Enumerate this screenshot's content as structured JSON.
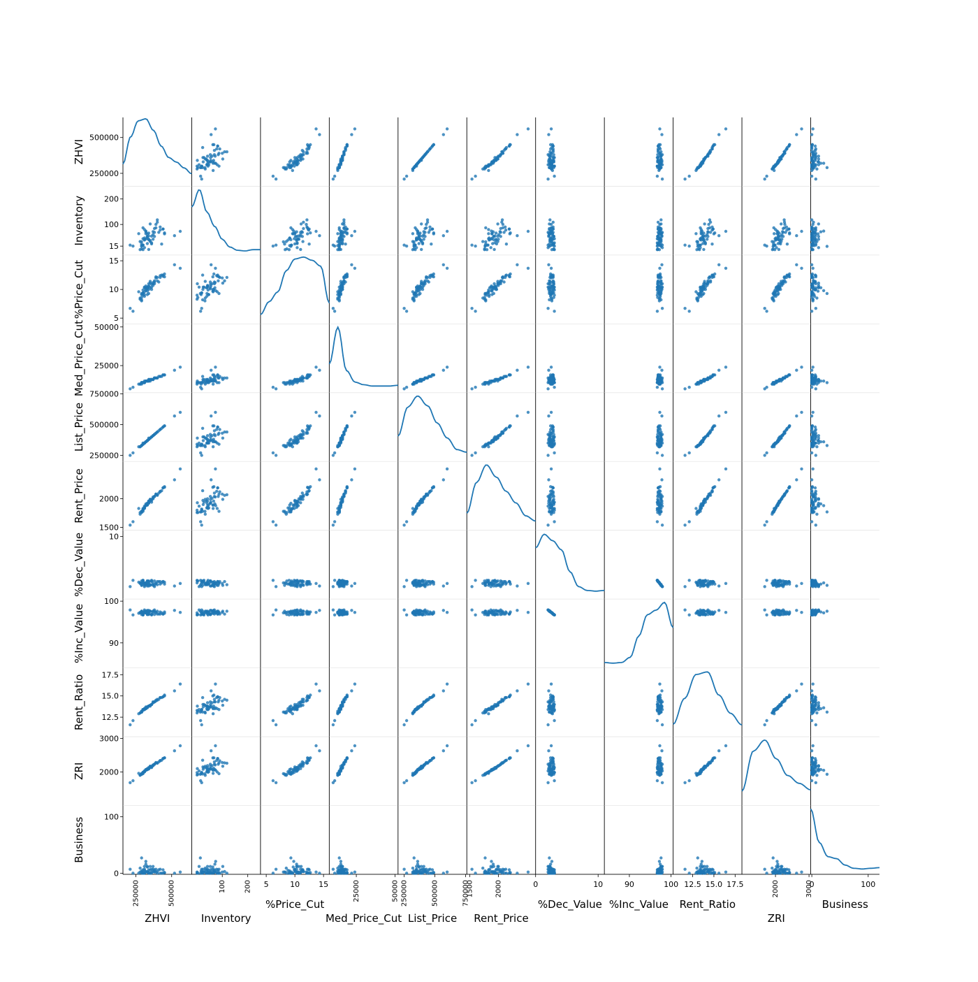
{
  "chart_data": {
    "type": "scatter",
    "subtype": "scatter_matrix",
    "title": "",
    "diagonal": "kde",
    "point_color": "#1f77b4",
    "line_color": "#1f77b4",
    "grid": false,
    "variables": [
      {
        "name": "ZHVI",
        "range": [
          160000,
          640000
        ],
        "y_ticks": [
          {
            "v": 250000,
            "label": "250000"
          },
          {
            "v": 500000,
            "label": "500000"
          }
        ],
        "x_ticks": [
          {
            "v": 250000,
            "label": "250000"
          },
          {
            "v": 500000,
            "label": "500000"
          }
        ],
        "x_tick_rotated": true
      },
      {
        "name": "Inventory",
        "range": [
          -20,
          250
        ],
        "y_ticks": [
          {
            "v": 15,
            "label": "15"
          },
          {
            "v": 100,
            "label": "100"
          },
          {
            "v": 200,
            "label": "200"
          }
        ],
        "x_ticks": [
          {
            "v": 100,
            "label": "100"
          },
          {
            "v": 200,
            "label": "200"
          }
        ],
        "x_tick_rotated": true
      },
      {
        "name": "%Price_Cut",
        "range": [
          4,
          16
        ],
        "y_ticks": [
          {
            "v": 5,
            "label": "5"
          },
          {
            "v": 10,
            "label": "10"
          },
          {
            "v": 15,
            "label": "15"
          }
        ],
        "x_ticks": [
          {
            "v": 5,
            "label": "5"
          },
          {
            "v": 10,
            "label": "10"
          },
          {
            "v": 15,
            "label": "15"
          }
        ],
        "x_tick_rotated": false
      },
      {
        "name": "Med_Price_Cut",
        "range": [
          7500,
          52000
        ],
        "y_ticks": [
          {
            "v": 25000,
            "label": "25000"
          },
          {
            "v": 50000,
            "label": "50000"
          }
        ],
        "x_ticks": [
          {
            "v": 25000,
            "label": "25000"
          },
          {
            "v": 50000,
            "label": "50000"
          }
        ],
        "x_tick_rotated": true
      },
      {
        "name": "List_Price",
        "range": [
          200000,
          760000
        ],
        "y_ticks": [
          {
            "v": 250000,
            "label": "250000"
          },
          {
            "v": 500000,
            "label": "500000"
          },
          {
            "v": 750000,
            "label": "750000"
          }
        ],
        "x_ticks": [
          {
            "v": 250000,
            "label": "250000"
          },
          {
            "v": 500000,
            "label": "500000"
          },
          {
            "v": 750000,
            "label": "750000"
          }
        ],
        "x_tick_rotated": true
      },
      {
        "name": "Rent_Price",
        "range": [
          1450,
          2650
        ],
        "y_ticks": [
          {
            "v": 1500,
            "label": "1500"
          },
          {
            "v": 2000,
            "label": "2000"
          }
        ],
        "x_ticks": [
          {
            "v": 1500,
            "label": "1500"
          },
          {
            "v": 2000,
            "label": "2000"
          }
        ],
        "x_tick_rotated": true
      },
      {
        "name": "%Dec_Value",
        "range": [
          0,
          11
        ],
        "y_ticks": [
          {
            "v": 10,
            "label": "10"
          }
        ],
        "x_ticks": [
          {
            "v": 0,
            "label": "0"
          },
          {
            "v": 10,
            "label": "10"
          }
        ],
        "x_tick_rotated": false
      },
      {
        "name": "%Inc_Value",
        "range": [
          84,
          100.5
        ],
        "y_ticks": [
          {
            "v": 90,
            "label": "90"
          },
          {
            "v": 100,
            "label": "100"
          }
        ],
        "x_ticks": [
          {
            "v": 90,
            "label": "90"
          },
          {
            "v": 100,
            "label": "100"
          }
        ],
        "x_tick_rotated": false
      },
      {
        "name": "Rent_Ratio",
        "range": [
          10.2,
          18.3
        ],
        "y_ticks": [
          {
            "v": 12.5,
            "label": "12.5"
          },
          {
            "v": 15.0,
            "label": "15.0"
          },
          {
            "v": 17.5,
            "label": "17.5"
          }
        ],
        "x_ticks": [
          {
            "v": 12.5,
            "label": "12.5"
          },
          {
            "v": 15.0,
            "label": "15.0"
          },
          {
            "v": 17.5,
            "label": "17.5"
          }
        ],
        "x_tick_rotated": false
      },
      {
        "name": "ZRI",
        "range": [
          1000,
          3050
        ],
        "y_ticks": [
          {
            "v": 2000,
            "label": "2000"
          },
          {
            "v": 3000,
            "label": "3000"
          }
        ],
        "x_ticks": [
          {
            "v": 2000,
            "label": "2000"
          },
          {
            "v": 3000,
            "label": "3000"
          }
        ],
        "x_tick_rotated": true
      },
      {
        "name": "Business",
        "range": [
          -2,
          120
        ],
        "y_ticks": [
          {
            "v": 0,
            "label": "0"
          },
          {
            "v": 100,
            "label": "100"
          }
        ],
        "x_ticks": [
          {
            "v": 0,
            "label": "0"
          },
          {
            "v": 100,
            "label": "100"
          }
        ],
        "x_tick_rotated": false
      }
    ],
    "kde": {
      "ZHVI": [
        0.3,
        0.72,
        0.97,
        1.0,
        0.82,
        0.58,
        0.4,
        0.33,
        0.24,
        0.15
      ],
      "Inventory": [
        0.7,
        0.97,
        0.62,
        0.4,
        0.2,
        0.08,
        0.03,
        0.02,
        0.04,
        0.04
      ],
      "%Price_Cut": [
        0.1,
        0.3,
        0.45,
        0.78,
        0.96,
        0.99,
        0.94,
        0.85,
        0.28
      ],
      "Med_Price_Cut": [
        0.4,
        0.97,
        0.3,
        0.12,
        0.08,
        0.06,
        0.06,
        0.06,
        0.07
      ],
      "List_Price": [
        0.35,
        0.8,
        0.97,
        0.82,
        0.55,
        0.32,
        0.14,
        0.1
      ],
      "Rent_Price": [
        0.22,
        0.7,
        0.97,
        0.78,
        0.56,
        0.38,
        0.18,
        0.1
      ],
      "%Dec_Value": [
        0.75,
        0.96,
        0.86,
        0.72,
        0.38,
        0.15,
        0.09,
        0.08,
        0.09
      ],
      "%Inc_Value": [
        0.04,
        0.03,
        0.04,
        0.12,
        0.45,
        0.78,
        0.85,
        0.97,
        0.58
      ],
      "Rent_Ratio": [
        0.15,
        0.55,
        0.92,
        0.96,
        0.6,
        0.32,
        0.14
      ],
      "ZRI": [
        0.18,
        0.8,
        0.97,
        0.68,
        0.42,
        0.3,
        0.2
      ],
      "Business": [
        0.97,
        0.45,
        0.23,
        0.2,
        0.1,
        0.05,
        0.04,
        0.05,
        0.06
      ]
    },
    "points": {
      "ZHVI": [
        520000,
        340000,
        320000,
        270000,
        300000,
        320000,
        360000,
        310000,
        420000,
        390000,
        280000,
        300000,
        330000,
        340000,
        310000,
        370000,
        400000,
        420000,
        370000,
        300000,
        300000,
        230000,
        310000,
        290000,
        430000,
        330000,
        320000,
        380000,
        380000,
        280000,
        330000,
        290000,
        360000,
        290000,
        340000,
        360000,
        330000,
        350000,
        290000,
        410000,
        400000,
        310000,
        340000,
        450000,
        380000,
        340000,
        440000,
        390000,
        350000,
        210000,
        300000,
        330000,
        350000,
        310000,
        290000,
        440000,
        560000,
        450000,
        320000,
        370000
      ],
      "Inventory": [
        56,
        66,
        71,
        64,
        44,
        64,
        28,
        41,
        78,
        87,
        1,
        19,
        53,
        2,
        9,
        60,
        109,
        90,
        42,
        87,
        1,
        15,
        47,
        4,
        23,
        25,
        74,
        84,
        53,
        33,
        46,
        32,
        24,
        23,
        55,
        54,
        63,
        37,
        14,
        69,
        118,
        80,
        40,
        67,
        69,
        42,
        82,
        100,
        102,
        19,
        19,
        53,
        33,
        39,
        17,
        82,
        73,
        63,
        43,
        72
      ],
      "%Price_Cut": [
        14.3,
        10.0,
        10.3,
        9.6,
        9.9,
        10.0,
        10.4,
        10.3,
        12.4,
        12.2,
        8.3,
        9.4,
        10.3,
        11.0,
        10.4,
        11.0,
        11.5,
        12.1,
        10.7,
        9.3,
        9.0,
        6.2,
        9.1,
        8.6,
        12.5,
        10.4,
        9.8,
        11.5,
        11.3,
        8.5,
        9.1,
        8.0,
        10.0,
        8.2,
        10.6,
        10.9,
        9.7,
        10.3,
        9.3,
        11.3,
        12.1,
        9.6,
        9.3,
        12.7,
        11.0,
        10.5,
        12.5,
        12.0,
        11.1,
        6.7,
        9.4,
        10.1,
        11.4,
        8.8,
        9.1,
        12.3,
        13.7,
        12.2,
        10.6,
        11.2
      ],
      "Med_Price_Cut": [
        22000,
        16000,
        15000,
        13000,
        14000,
        15000,
        16000,
        15000,
        18000,
        17000,
        13000,
        14000,
        15000,
        15000,
        14000,
        16000,
        17000,
        18000,
        16000,
        14000,
        14000,
        11000,
        14000,
        14000,
        18000,
        15000,
        15000,
        17000,
        17000,
        13000,
        15000,
        14000,
        16000,
        14000,
        15000,
        16000,
        15000,
        16000,
        14000,
        18000,
        17000,
        14000,
        15000,
        19000,
        17000,
        16000,
        19000,
        17000,
        16000,
        10000,
        14000,
        15000,
        15000,
        14000,
        13000,
        19000,
        24000,
        19000,
        15000,
        16000
      ],
      "List_Price": [
        570000,
        380000,
        360000,
        320000,
        350000,
        360000,
        400000,
        350000,
        460000,
        430000,
        320000,
        340000,
        370000,
        390000,
        350000,
        410000,
        440000,
        460000,
        410000,
        340000,
        340000,
        270000,
        350000,
        330000,
        470000,
        370000,
        360000,
        420000,
        420000,
        320000,
        370000,
        330000,
        400000,
        330000,
        380000,
        400000,
        370000,
        390000,
        330000,
        450000,
        440000,
        350000,
        380000,
        490000,
        420000,
        380000,
        480000,
        430000,
        390000,
        250000,
        340000,
        370000,
        390000,
        350000,
        330000,
        480000,
        600000,
        490000,
        360000,
        410000
      ],
      "Rent_Price": [
        2330,
        1960,
        1910,
        1830,
        1830,
        1890,
        1940,
        1850,
        2130,
        2080,
        1760,
        1810,
        1920,
        1930,
        1870,
        2010,
        2060,
        2120,
        2000,
        1780,
        1800,
        1600,
        1840,
        1760,
        2140,
        1900,
        1880,
        2040,
        2040,
        1730,
        1890,
        1780,
        1970,
        1780,
        1940,
        1990,
        1890,
        1960,
        1770,
        2100,
        2070,
        1830,
        1920,
        2210,
        2040,
        1960,
        2190,
        2080,
        1990,
        1540,
        1820,
        1920,
        1990,
        1840,
        1770,
        2190,
        2520,
        2200,
        1880,
        2030
      ],
      "%Dec_Value": [
        2.1,
        2.1,
        2.4,
        2.7,
        3.0,
        2.3,
        3.0,
        2.6,
        2.4,
        2.5,
        2.6,
        2.7,
        2.1,
        2.9,
        2.0,
        2.2,
        2.8,
        2.8,
        2.3,
        2.6,
        3.0,
        3.0,
        2.4,
        2.9,
        2.6,
        2.9,
        2.6,
        2.2,
        2.9,
        2.5,
        2.5,
        2.6,
        2.8,
        2.2,
        2.7,
        2.9,
        2.3,
        2.3,
        2.2,
        2.8,
        2.3,
        2.2,
        2.4,
        2.4,
        2.0,
        2.8,
        2.8,
        2.5,
        2.2,
        2.0,
        2.9,
        2.9,
        2.3,
        2.4,
        2.4,
        2.8,
        2.5,
        2.7,
        2.6,
        2.5
      ],
      "%Inc_Value": [
        97.8,
        97.8,
        97.4,
        97.1,
        96.7,
        97.6,
        96.7,
        97.2,
        97.4,
        97.3,
        97.2,
        97.1,
        97.8,
        96.8,
        97.9,
        97.6,
        96.9,
        96.9,
        97.6,
        97.2,
        96.7,
        96.7,
        97.4,
        96.8,
        97.2,
        96.8,
        97.2,
        97.6,
        96.8,
        97.3,
        97.3,
        97.2,
        96.9,
        97.6,
        97.0,
        96.8,
        97.6,
        97.6,
        97.6,
        96.9,
        97.6,
        97.6,
        97.4,
        97.4,
        97.9,
        96.9,
        96.9,
        97.3,
        97.6,
        97.9,
        96.8,
        96.8,
        97.6,
        97.4,
        97.4,
        96.9,
        97.3,
        97.1,
        97.2,
        97.3
      ],
      "Rent_Ratio": [
        15.6,
        13.8,
        13.5,
        12.9,
        13.4,
        13.5,
        14.0,
        13.4,
        14.8,
        14.5,
        13.0,
        13.4,
        13.7,
        13.8,
        13.4,
        14.2,
        14.6,
        14.8,
        14.2,
        13.4,
        13.3,
        12.1,
        13.5,
        13.2,
        14.8,
        13.7,
        13.6,
        14.3,
        14.3,
        13.0,
        13.7,
        13.1,
        14.0,
        13.1,
        13.8,
        14.0,
        13.6,
        13.8,
        13.1,
        14.6,
        14.5,
        13.5,
        13.8,
        15.1,
        14.3,
        13.8,
        14.9,
        14.4,
        13.9,
        11.6,
        13.4,
        13.7,
        13.9,
        13.5,
        13.2,
        14.9,
        16.4,
        15.0,
        13.7,
        14.3
      ],
      "ZRI": [
        2630,
        2110,
        2070,
        1960,
        1990,
        2050,
        2130,
        2020,
        2340,
        2270,
        1910,
        1970,
        2080,
        2100,
        2030,
        2190,
        2270,
        2330,
        2190,
        1950,
        1980,
        1740,
        2010,
        1930,
        2350,
        2080,
        2050,
        2230,
        2230,
        1900,
        2070,
        1950,
        2150,
        1940,
        2100,
        2170,
        2070,
        2130,
        1930,
        2300,
        2260,
        2000,
        2090,
        2420,
        2230,
        2130,
        2400,
        2280,
        2170,
        1680,
        1990,
        2100,
        2170,
        2010,
        1950,
        2400,
        2780,
        2420,
        2070,
        2210
      ],
      "Business": [
        0,
        6,
        16,
        0,
        6,
        3,
        2,
        7,
        7,
        7,
        2,
        2,
        12,
        1,
        12,
        7,
        3,
        0,
        12,
        0,
        0,
        0,
        0,
        0,
        0,
        2,
        21,
        3,
        6,
        9,
        2,
        2,
        7,
        2,
        1,
        0,
        11,
        0,
        27,
        6,
        0,
        0,
        0,
        1,
        2,
        0,
        6,
        2,
        12,
        7,
        0,
        3,
        6,
        5,
        4,
        0,
        2,
        1,
        2,
        3
      ]
    }
  }
}
